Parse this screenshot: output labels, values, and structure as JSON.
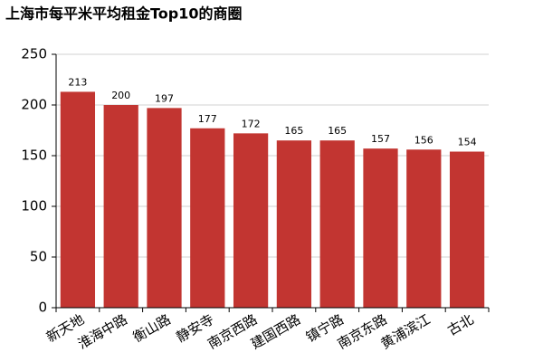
{
  "chart_data": {
    "type": "bar",
    "title": "上海市每平米平均租金Top10的商圈",
    "categories": [
      "新天地",
      "淮海中路",
      "衡山路",
      "静安寺",
      "南京西路",
      "建国西路",
      "镇宁路",
      "南京东路",
      "黄浦滨江",
      "古北"
    ],
    "values": [
      213,
      200,
      197,
      177,
      172,
      165,
      165,
      157,
      156,
      154
    ],
    "color": "#c23531",
    "ylim": [
      0,
      250
    ],
    "yticks": [
      0,
      50,
      100,
      150,
      200,
      250
    ],
    "grid": true,
    "data_labels": true
  }
}
